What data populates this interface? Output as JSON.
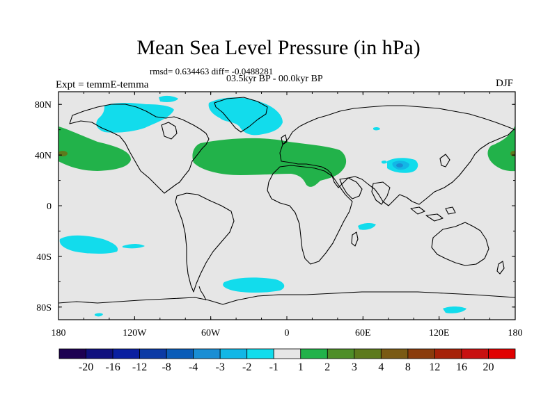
{
  "title": "Mean Sea Level Pressure (in hPa)",
  "stats": "rmsd= 0.634463 diff= -0.0488281",
  "period": "03.5kyr BP - 00.0kyr BP",
  "experiment": "Expt = temmE-temma",
  "season": "DJF",
  "map": {
    "lon_range": [
      -180,
      180
    ],
    "lat_range": [
      -90,
      90
    ],
    "lon_ticks": [
      {
        "value": -180,
        "label": "180"
      },
      {
        "value": -120,
        "label": "120W"
      },
      {
        "value": -60,
        "label": "60W"
      },
      {
        "value": 0,
        "label": "0"
      },
      {
        "value": 60,
        "label": "60E"
      },
      {
        "value": 120,
        "label": "120E"
      },
      {
        "value": 180,
        "label": "180"
      }
    ],
    "lat_ticks": [
      {
        "value": 80,
        "label": "80N"
      },
      {
        "value": 40,
        "label": "40N"
      },
      {
        "value": 0,
        "label": "0"
      },
      {
        "value": -40,
        "label": "40S"
      },
      {
        "value": -80,
        "label": "80S"
      }
    ]
  },
  "colorbar": {
    "labels": [
      "-20",
      "-16",
      "-12",
      "-8",
      "-4",
      "-3",
      "-2",
      "-1",
      "1",
      "2",
      "3",
      "4",
      "8",
      "12",
      "16",
      "20"
    ],
    "colors": [
      "#1d0052",
      "#10107e",
      "#0a1fa0",
      "#0b3aa5",
      "#0a5cb8",
      "#1a8ed4",
      "#12b7e6",
      "#12dcec",
      "#e6e6e6",
      "#22b24a",
      "#4e8e28",
      "#5d7a1c",
      "#7a5a14",
      "#8a3c0c",
      "#a62208",
      "#c81010",
      "#e00000"
    ]
  },
  "colors": {
    "background": "#e6e6e6",
    "positive_1_2": "#22b24a",
    "negative_1_2": "#12dcec",
    "negative_2_3": "#12b7e6",
    "negative_3_4": "#1a8ed4"
  }
}
